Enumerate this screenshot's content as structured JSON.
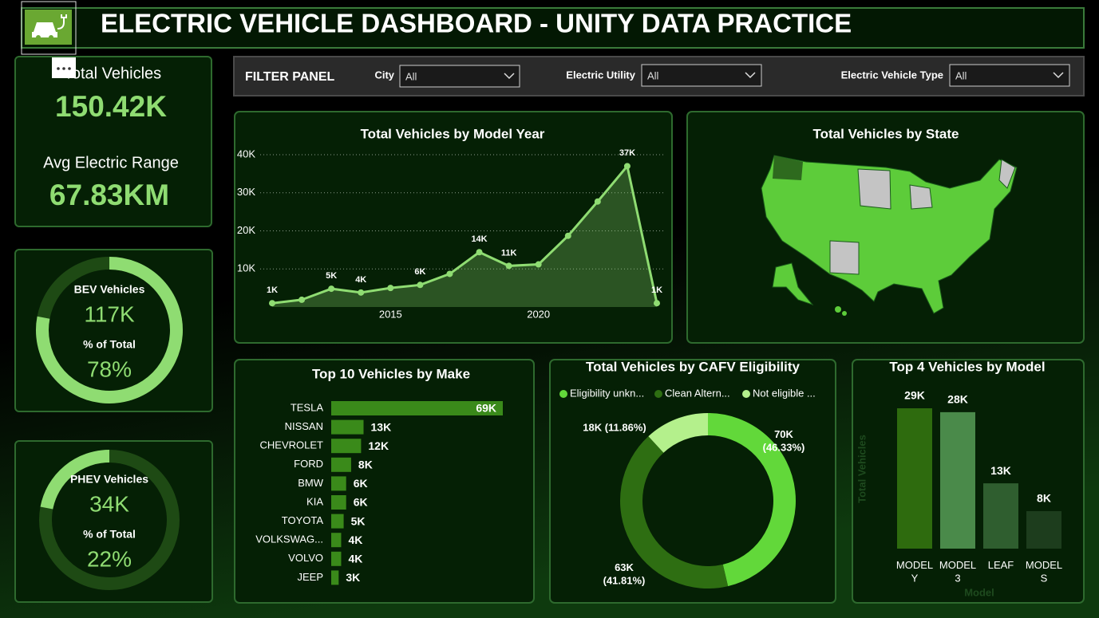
{
  "header": {
    "title": "ELECTRIC VEHICLE DASHBOARD - UNITY DATA PRACTICE"
  },
  "kpis": [
    {
      "label": "Total Vehicles",
      "value": "150.42K"
    },
    {
      "label": "Avg Electric Range",
      "value": "67.83KM"
    }
  ],
  "filters": {
    "title": "FILTER PANEL",
    "items": [
      {
        "label": "City",
        "value": "All"
      },
      {
        "label": "Electric Utility",
        "value": "All"
      },
      {
        "label": "Electric Vehicle Type",
        "value": "All"
      }
    ]
  },
  "map": {
    "title": "Total Vehicles by State"
  },
  "chart_data": [
    {
      "type": "gauge",
      "title": "BEV Vehicles",
      "value_label": "117K",
      "subtitle": "% of Total",
      "values": [
        78
      ],
      "value_labels": [
        "78%"
      ],
      "anchor": "start",
      "color": "#8fdc72"
    },
    {
      "type": "gauge",
      "title": "PHEV Vehicles",
      "value_label": "34K",
      "subtitle": "% of Total",
      "values": [
        22
      ],
      "value_labels": [
        "22%"
      ],
      "anchor": "end",
      "color": "#8fdc72"
    },
    {
      "type": "line",
      "title": "Total Vehicles by Model Year",
      "x": [
        2011,
        2012,
        2013,
        2014,
        2015,
        2016,
        2017,
        2018,
        2019,
        2020,
        2021,
        2022,
        2023,
        2024
      ],
      "values": [
        1000,
        1900,
        4800,
        3800,
        5000,
        5800,
        8700,
        14400,
        10800,
        11200,
        18700,
        27700,
        37000,
        1000
      ],
      "value_labels": [
        "1K",
        null,
        "5K",
        "4K",
        null,
        "6K",
        null,
        "14K",
        "11K",
        null,
        null,
        null,
        "37K",
        "1K"
      ],
      "xlim": [
        2011,
        2024
      ],
      "xticks": [
        2015,
        2020
      ],
      "ylim": [
        0,
        40000
      ],
      "yticks": [
        {
          "value": 10000,
          "label": "10K"
        },
        {
          "value": 20000,
          "label": "20K"
        },
        {
          "value": 30000,
          "label": "30K"
        },
        {
          "value": 40000,
          "label": "40K"
        }
      ],
      "grid": true,
      "color": "#8fdc72"
    },
    {
      "type": "bar",
      "orientation": "horizontal",
      "title": "Top 10 Vehicles by Make",
      "categories": [
        "TESLA",
        "NISSAN",
        "CHEVROLET",
        "FORD",
        "BMW",
        "KIA",
        "TOYOTA",
        "VOLKSWAG...",
        "VOLVO",
        "JEEP"
      ],
      "values": [
        69000,
        13000,
        12000,
        8000,
        6000,
        6000,
        5000,
        4000,
        4000,
        3000
      ],
      "value_labels": [
        "69K",
        "13K",
        "12K",
        "8K",
        "6K",
        "6K",
        "5K",
        "4K",
        "4K",
        "3K"
      ],
      "color": "#3a8a1a"
    },
    {
      "type": "pie",
      "title": "Total Vehicles by CAFV Eligibility",
      "categories": [
        "Eligibility unkn...",
        "Clean Altern...",
        "Not eligible ..."
      ],
      "values": [
        69690,
        62890,
        17840
      ],
      "value_labels": [
        "70K (46.33%)",
        "63K (41.81%)",
        "18K (11.86%)"
      ],
      "colors": [
        "#62d83a",
        "#2e6e12",
        "#b4f08c"
      ]
    },
    {
      "type": "bar",
      "orientation": "vertical",
      "title": "Top 4 Vehicles by Model",
      "categories": [
        "MODEL Y",
        "MODEL 3",
        "LEAF",
        "MODEL S"
      ],
      "values": [
        28800,
        28000,
        13400,
        7700
      ],
      "value_labels": [
        "29K",
        "28K",
        "13K",
        "8K"
      ],
      "colors": [
        "#2e6b0e",
        "#4a8a4a",
        "#2f5e2f",
        "#1d3d1d"
      ],
      "xlabel": "Model",
      "ylabel": "Total Vehicles"
    }
  ]
}
